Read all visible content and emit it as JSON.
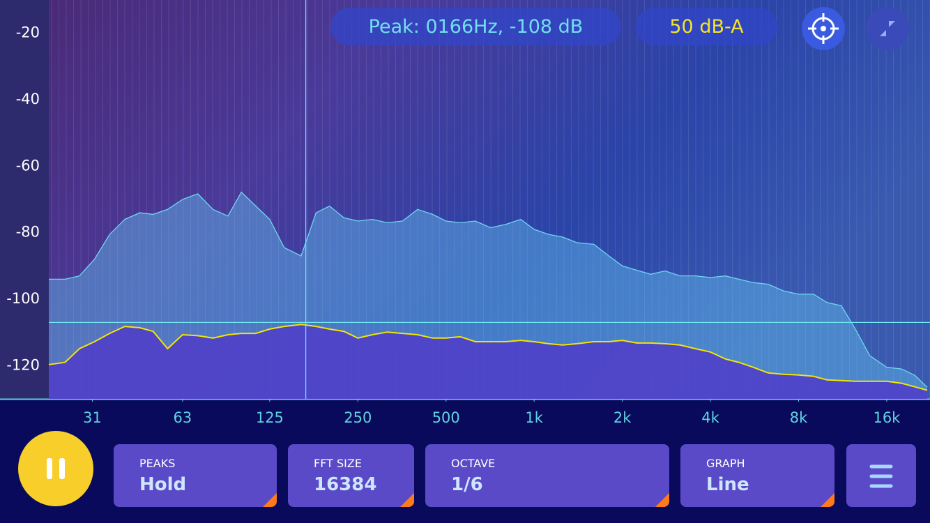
{
  "header": {
    "peak_readout": "Peak: 0166Hz, -108 dB",
    "weighting": "50 dB-A"
  },
  "chart_data": {
    "type": "area",
    "x": [
      22,
      25,
      28,
      31.5,
      35.5,
      40,
      45,
      50,
      56,
      63,
      71,
      80,
      90,
      100,
      112,
      125,
      140,
      160,
      180,
      200,
      224,
      250,
      280,
      315,
      355,
      400,
      450,
      500,
      560,
      630,
      710,
      800,
      900,
      1000,
      1120,
      1250,
      1400,
      1600,
      1800,
      2000,
      2240,
      2500,
      2800,
      3150,
      3550,
      4000,
      4500,
      5000,
      5600,
      6300,
      7100,
      8000,
      9000,
      10000,
      11200,
      12500,
      14000,
      16000,
      18000,
      20000,
      22000
    ],
    "series": [
      {
        "color": "#6fd6f0",
        "values": [
          -94,
          -94,
          -93,
          -88,
          -80.5,
          -76,
          -74,
          -74.5,
          -73,
          -70,
          -68.3,
          -73,
          -75,
          -67.8,
          -72,
          -76,
          -84.5,
          -87,
          -74,
          -72,
          -75.5,
          -76.5,
          -76,
          -77,
          -76.5,
          -73,
          -74.5,
          -76.5,
          -77,
          -76.5,
          -78.5,
          -77.5,
          -76,
          -79,
          -80.5,
          -81.3,
          -83,
          -83.5,
          -87,
          -90,
          -91.3,
          -92.5,
          -91.5,
          -93,
          -93,
          -93.5,
          -93,
          -94,
          -95,
          -95.5,
          -97.5,
          -98.5,
          -98.5,
          -101,
          -102,
          -109,
          -117,
          -120.5,
          -121,
          -123,
          -126.5
        ]
      },
      {
        "color": "#f2e600",
        "values": [
          -119.7,
          -119,
          -114.9,
          -112.8,
          -110.3,
          -108.2,
          -108.6,
          -109.7,
          -114.9,
          -110.7,
          -111,
          -111.7,
          -110.7,
          -110.3,
          -110.3,
          -109,
          -108.2,
          -107.6,
          -108.2,
          -109,
          -109.7,
          -111.7,
          -110.7,
          -109.9,
          -110.3,
          -110.7,
          -111.7,
          -111.7,
          -111.3,
          -112.8,
          -112.8,
          -112.8,
          -112.4,
          -112.8,
          -113.4,
          -113.8,
          -113.4,
          -112.8,
          -112.8,
          -112.4,
          -113.2,
          -113.2,
          -113.4,
          -113.8,
          -114.9,
          -115.9,
          -118,
          -119,
          -120.5,
          -122.2,
          -122.6,
          -122.8,
          -123.2,
          -124.3,
          -124.5,
          -124.7,
          -124.7,
          -124.7,
          -125.3,
          -126.4,
          -127.4
        ]
      }
    ],
    "cursor": {
      "x": 166,
      "y": -107
    },
    "xscale": "log",
    "xlim": [
      22,
      22000
    ],
    "xticks": [
      31,
      63,
      125,
      250,
      500,
      {
        "value": 1000,
        "label": "1k"
      },
      {
        "value": 2000,
        "label": "2k"
      },
      {
        "value": 4000,
        "label": "4k"
      },
      {
        "value": 8000,
        "label": "8k"
      },
      {
        "value": 16000,
        "label": "16k"
      }
    ],
    "ylim": [
      -130,
      -10
    ],
    "yticks": [
      -120,
      -100,
      -80,
      -60,
      -40,
      -20
    ]
  },
  "controls": [
    {
      "label": "PEAKS",
      "value": "Hold"
    },
    {
      "label": "FFT SIZE",
      "value": "16384"
    },
    {
      "label": "OCTAVE",
      "value": "1/6"
    },
    {
      "label": "GRAPH",
      "value": "Line"
    }
  ]
}
